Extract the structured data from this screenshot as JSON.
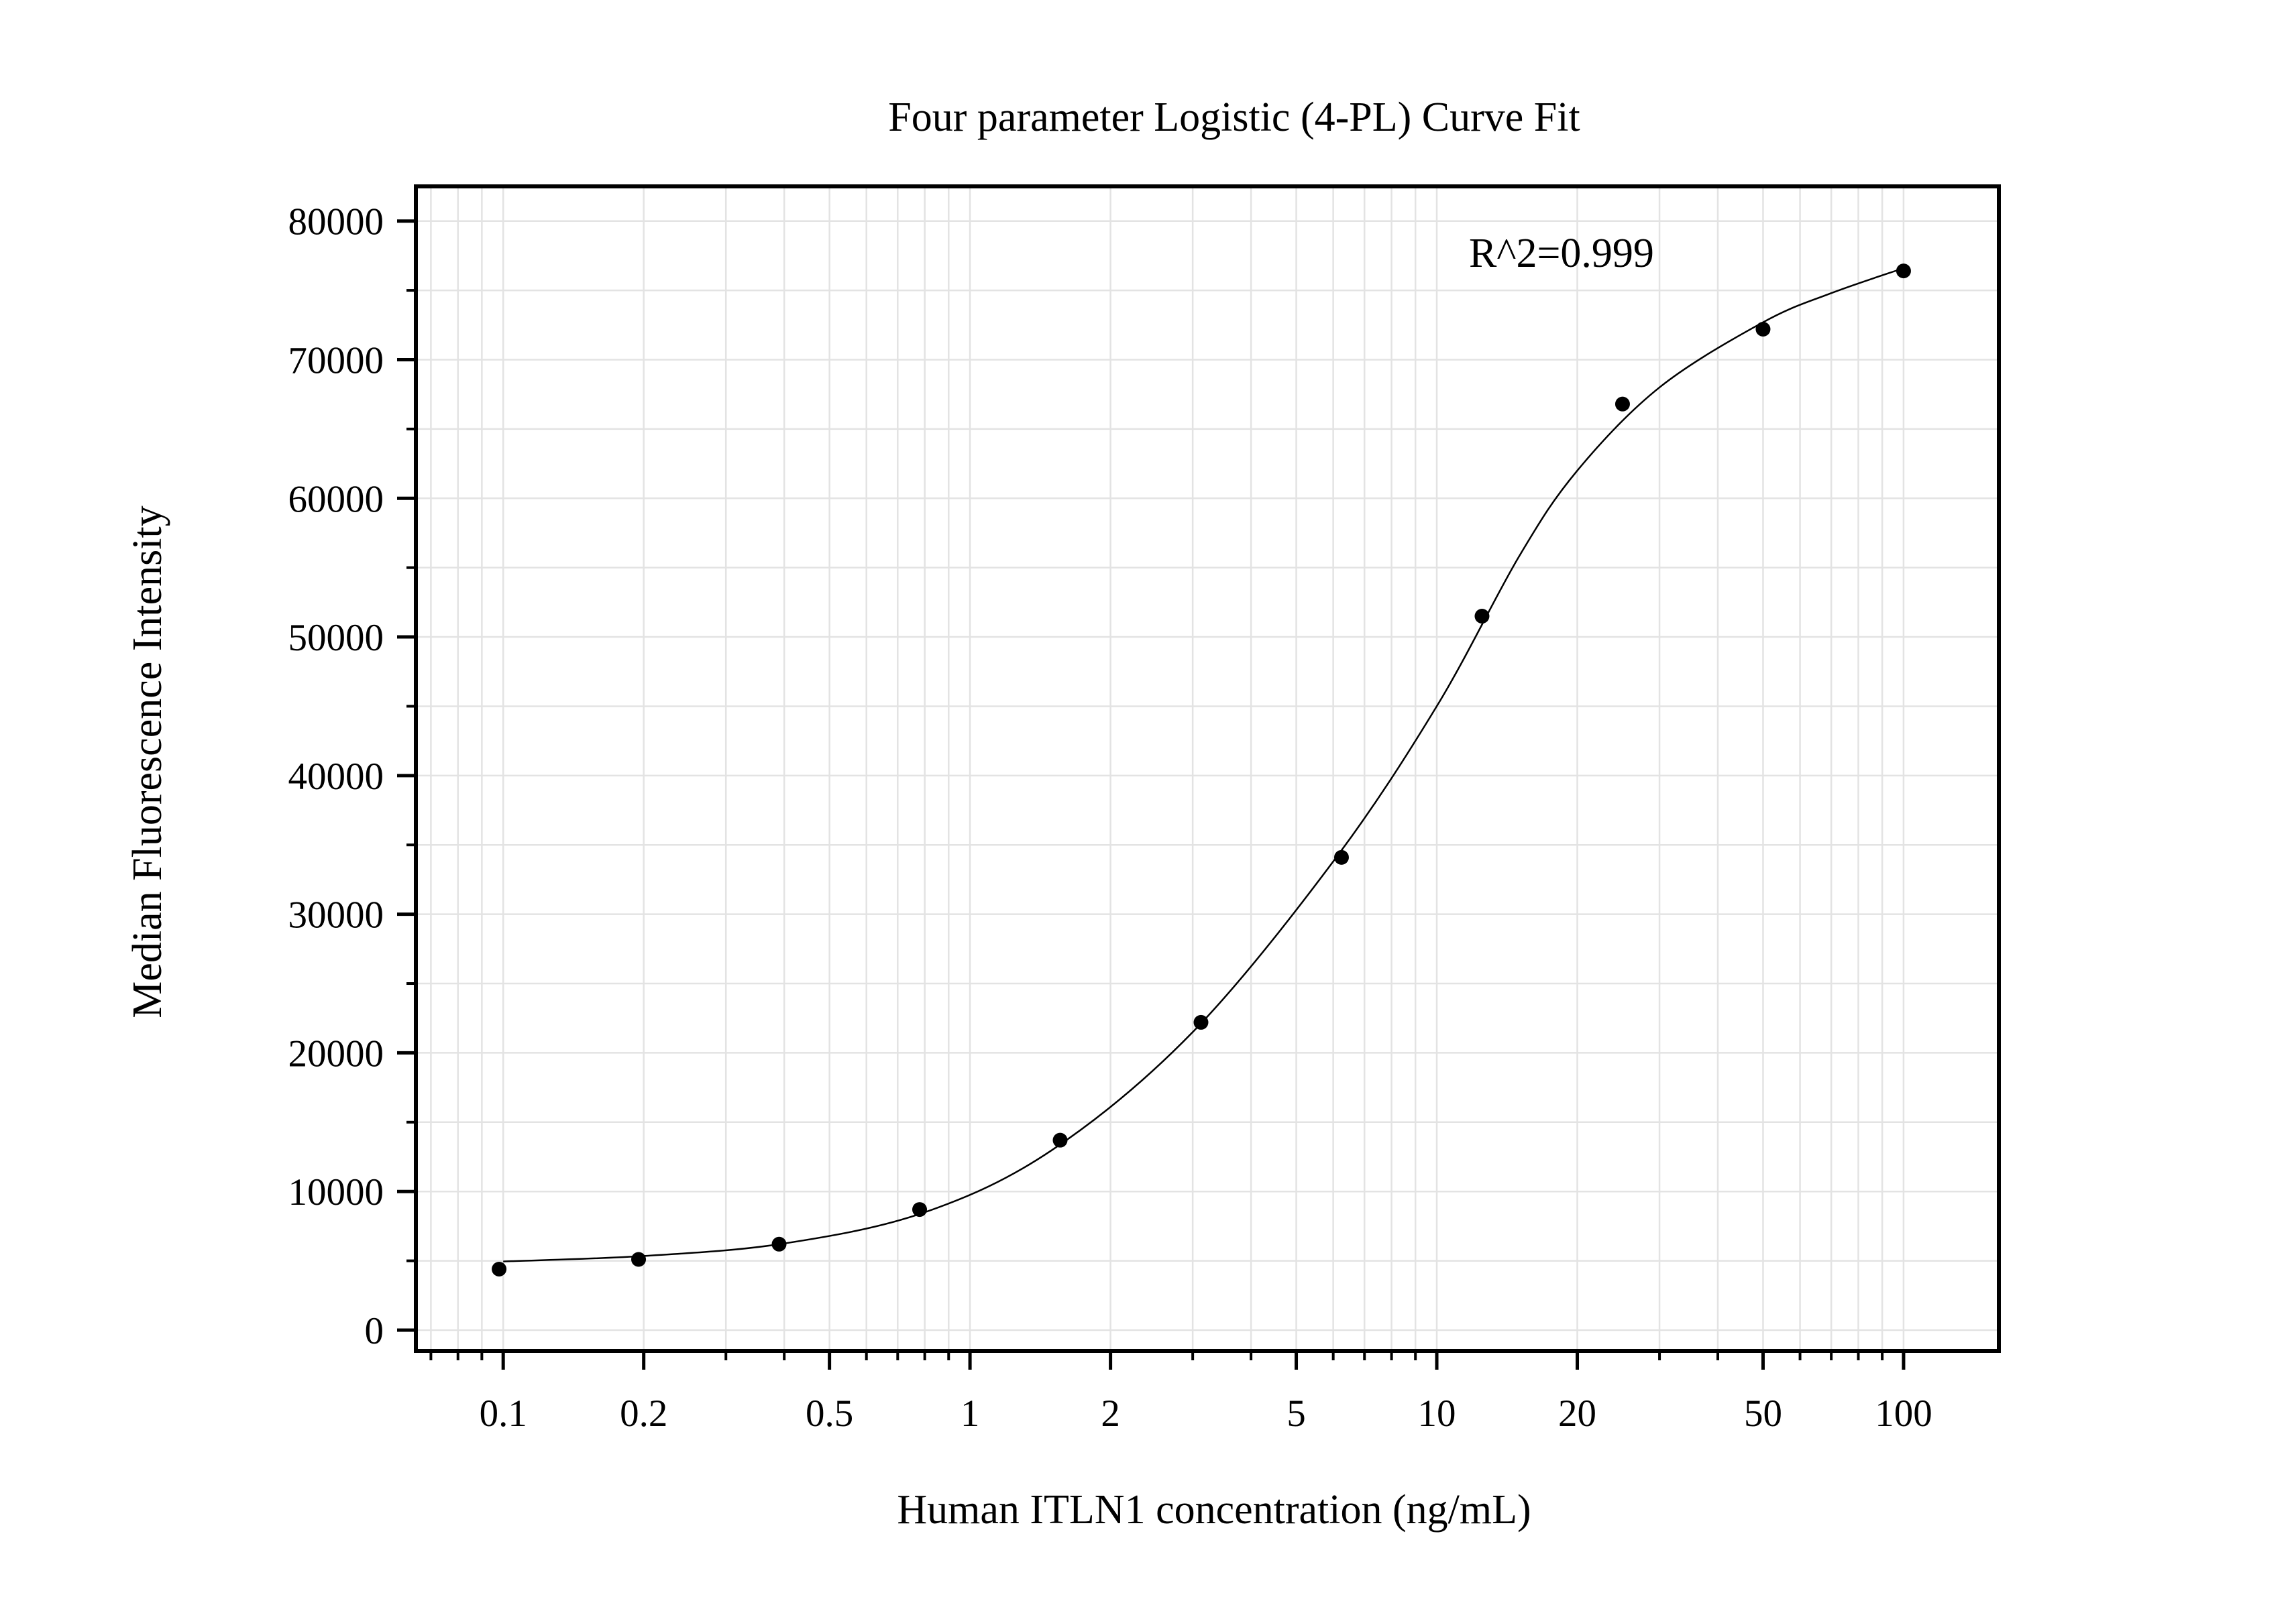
{
  "chart_data": {
    "type": "scatter",
    "title": "Four parameter Logistic (4-PL) Curve Fit",
    "xlabel": "Human ITLN1 concentration (ng/mL)",
    "ylabel": "Median Fluorescence Intensity",
    "x_scale": "log",
    "xlim": [
      0.065,
      160
    ],
    "ylim": [
      -1500,
      82500
    ],
    "x_ticks": [
      0.1,
      0.2,
      0.5,
      1,
      2,
      5,
      10,
      20,
      50,
      100
    ],
    "x_tick_labels": [
      "0.1",
      "0.2",
      "0.5",
      "1",
      "2",
      "5",
      "10",
      "20",
      "50",
      "100"
    ],
    "y_ticks": [
      0,
      10000,
      20000,
      30000,
      40000,
      50000,
      60000,
      70000,
      80000
    ],
    "y_tick_labels": [
      "0",
      "10000",
      "20000",
      "30000",
      "40000",
      "50000",
      "60000",
      "70000",
      "80000"
    ],
    "grid": true,
    "annotation": "R^2=0.999",
    "series": [
      {
        "x": [
          0.098,
          0.195,
          0.39,
          0.78,
          1.56,
          3.125,
          6.25,
          12.5,
          25,
          50,
          100
        ],
        "y": [
          4400,
          5100,
          6200,
          8700,
          13700,
          22200,
          34100,
          51500,
          66800,
          72200,
          76400
        ]
      }
    ],
    "fit": {
      "model": "4PL",
      "points": [
        [
          0.1,
          4950
        ],
        [
          0.2,
          5350
        ],
        [
          0.4,
          6250
        ],
        [
          0.8,
          8500
        ],
        [
          1.5,
          13000
        ],
        [
          3,
          21500
        ],
        [
          6,
          33800
        ],
        [
          10,
          45000
        ],
        [
          15,
          55800
        ],
        [
          20,
          62000
        ],
        [
          30,
          68000
        ],
        [
          50,
          72700
        ],
        [
          70,
          74800
        ],
        [
          100,
          76600
        ]
      ]
    },
    "colors": {
      "marks": "#000000",
      "grid": "#e3e3e3",
      "axes": "#000000"
    }
  }
}
